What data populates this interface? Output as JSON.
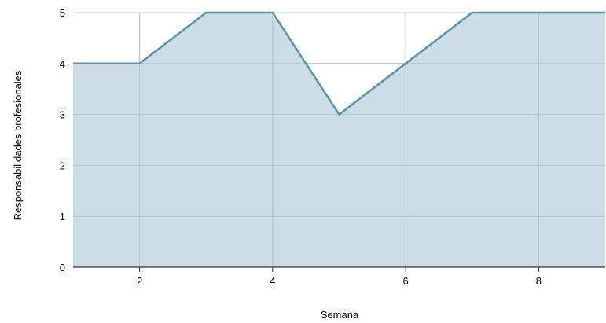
{
  "chart_data": {
    "type": "area",
    "title": "",
    "xlabel": "Semana",
    "ylabel": "Responsabilidades profesionales",
    "x": [
      1,
      2,
      3,
      4,
      5,
      6,
      7,
      8,
      9
    ],
    "series": [
      {
        "values": [
          4,
          4,
          5,
          5,
          3,
          4,
          5,
          5,
          5
        ]
      }
    ],
    "xlim": [
      1,
      9
    ],
    "ylim": [
      0,
      5
    ],
    "xticks": [
      2,
      4,
      6,
      8
    ],
    "yticks": [
      0,
      1,
      2,
      3,
      4,
      5
    ],
    "grid": true,
    "legend": "none",
    "colors": {
      "line": "#5b91aa",
      "fill": "#cddde5",
      "grid": "#c8c8c8",
      "axis": "#333333"
    }
  }
}
